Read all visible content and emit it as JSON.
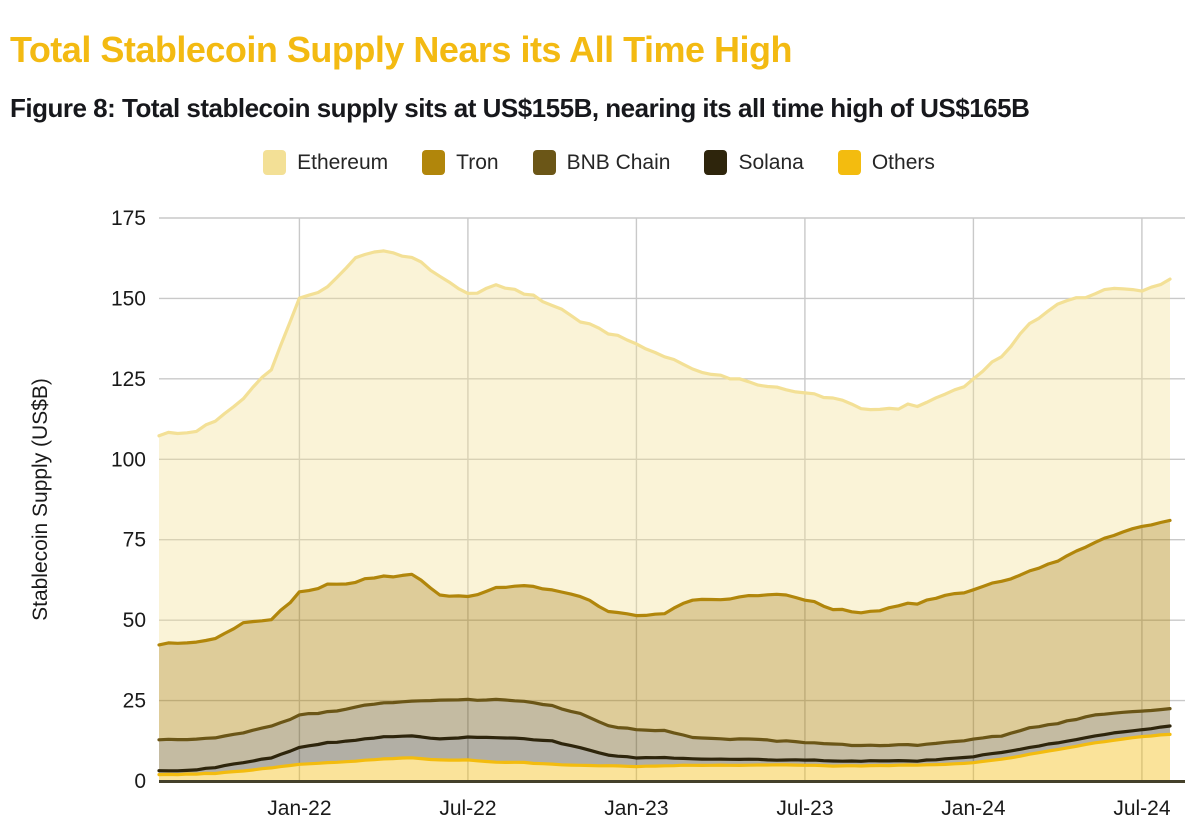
{
  "header": {
    "title": "Total Stablecoin Supply Nears its All Time High",
    "title_color": "#F3BA12",
    "subtitle": "Figure 8: Total stablecoin supply sits at US$155B, nearing its all time high of US$165B",
    "subtitle_color": "#17181C"
  },
  "chart_data": {
    "type": "area",
    "stacked": true,
    "ylabel": "Stablecoin Supply (US$B)",
    "ylim": [
      0,
      175
    ],
    "y_tick_step": 25,
    "y_tick_labels": [
      "175",
      "150",
      "125",
      "100",
      "75",
      "50",
      "25",
      "0"
    ],
    "grid": true,
    "grid_color": "#c9c9c9",
    "axis_color": "#44402a",
    "text_color": "#1a1a1a",
    "legend_position": "top-center",
    "x_labels": [
      "Aug-21",
      "Sep-21",
      "Oct-21",
      "Nov-21",
      "Dec-21",
      "Jan-22",
      "Feb-22",
      "Mar-22",
      "Apr-22",
      "May-22",
      "Jun-22",
      "Jul-22",
      "Aug-22",
      "Sep-22",
      "Oct-22",
      "Nov-22",
      "Dec-22",
      "Jan-23",
      "Feb-23",
      "Mar-23",
      "Apr-23",
      "May-23",
      "Jun-23",
      "Jul-23",
      "Aug-23",
      "Sep-23",
      "Oct-23",
      "Nov-23",
      "Dec-23",
      "Jan-24",
      "Feb-24",
      "Mar-24",
      "Apr-24",
      "May-24",
      "Jun-24",
      "Jul-24",
      "Aug-24"
    ],
    "x_ticks": [
      {
        "index": 5,
        "label": "Jan-22"
      },
      {
        "index": 11,
        "label": "Jul-22"
      },
      {
        "index": 17,
        "label": "Jan-23"
      },
      {
        "index": 23,
        "label": "Jul-23"
      },
      {
        "index": 29,
        "label": "Jan-24"
      },
      {
        "index": 35,
        "label": "Jul-24"
      }
    ],
    "stack_order": [
      "Others",
      "Solana",
      "BNB Chain",
      "Tron",
      "Ethereum"
    ],
    "series": [
      {
        "name": "Ethereum",
        "color": "#F3E096",
        "fill_opacity": 0.38,
        "values": [
          65.0,
          65.0,
          67.5,
          70.0,
          78.0,
          91.5,
          92.0,
          101.0,
          101.5,
          98.5,
          99.0,
          94.0,
          94.0,
          91.0,
          88.5,
          85.5,
          86.5,
          84.5,
          80.0,
          71.5,
          69.5,
          66.5,
          64.0,
          64.5,
          65.5,
          63.5,
          61.5,
          61.5,
          62.5,
          65.5,
          70.0,
          77.0,
          79.5,
          78.0,
          76.5,
          73.0,
          75.0
        ]
      },
      {
        "name": "Tron",
        "color": "#B1860B",
        "fill_opacity": 0.42,
        "values": [
          29.5,
          30.1,
          31.0,
          34.0,
          33.0,
          38.0,
          39.5,
          39.0,
          39.2,
          39.7,
          32.8,
          31.8,
          34.7,
          36.2,
          36.2,
          36.5,
          35.5,
          35.5,
          36.5,
          43.0,
          43.5,
          44.5,
          45.5,
          44.5,
          42.0,
          41.5,
          42.5,
          44.2,
          45.5,
          46.5,
          48.0,
          48.5,
          50.5,
          53.0,
          55.3,
          57.3,
          58.5
        ]
      },
      {
        "name": "BNB Chain",
        "color": "#6B5617",
        "fill_opacity": 0.4,
        "values": [
          9.6,
          9.7,
          9.3,
          9.3,
          9.8,
          10.1,
          9.6,
          10.3,
          10.5,
          10.8,
          12.1,
          11.6,
          11.8,
          11.7,
          10.9,
          10.6,
          9.0,
          8.8,
          8.3,
          6.6,
          6.3,
          6.3,
          6.0,
          5.5,
          5.3,
          4.8,
          4.8,
          5.0,
          5.1,
          5.4,
          5.2,
          6.1,
          6.1,
          6.5,
          6.2,
          5.7,
          5.4
        ]
      },
      {
        "name": "Solana",
        "color": "#2E250C",
        "fill_opacity": 0.37,
        "values": [
          1.2,
          1.1,
          1.8,
          2.6,
          3.1,
          5.2,
          6.2,
          6.5,
          6.9,
          6.8,
          6.6,
          7.1,
          7.6,
          7.4,
          7.2,
          5.5,
          3.3,
          2.7,
          2.5,
          2.0,
          1.8,
          1.8,
          1.5,
          1.6,
          1.5,
          1.5,
          1.4,
          1.3,
          1.7,
          1.9,
          2.1,
          2.1,
          2.1,
          2.1,
          2.3,
          2.2,
          2.6
        ]
      },
      {
        "name": "Others",
        "color": "#F3BC0F",
        "fill_opacity": 0.42,
        "values": [
          2.0,
          2.1,
          2.4,
          3.1,
          4.1,
          5.2,
          5.7,
          6.2,
          6.9,
          7.2,
          6.5,
          6.5,
          5.9,
          5.7,
          5.2,
          4.9,
          4.7,
          4.5,
          4.7,
          4.9,
          4.9,
          4.9,
          5.0,
          4.9,
          4.7,
          4.7,
          4.8,
          5.0,
          5.2,
          5.7,
          6.7,
          8.3,
          9.8,
          11.4,
          12.7,
          13.8,
          14.5
        ]
      }
    ]
  }
}
